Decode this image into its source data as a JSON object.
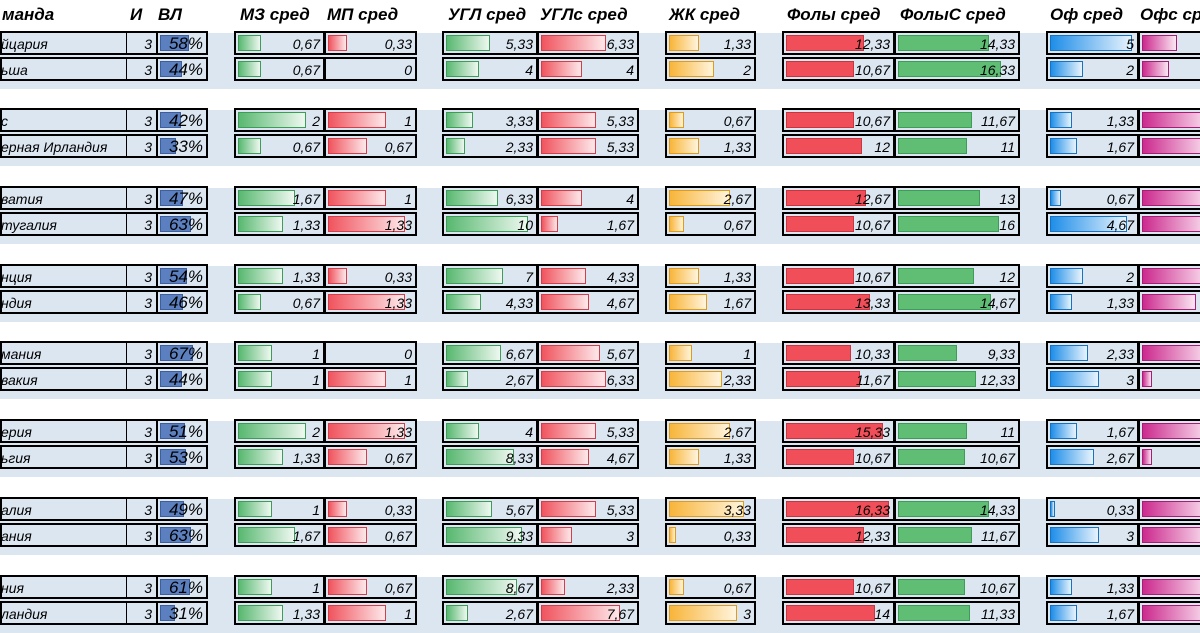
{
  "colors": {
    "row_band": "#dce6f1",
    "vl_bar": "#5b7fbf",
    "mz_bar": "#58b870",
    "mp_bar": "#f0545e",
    "ugl_bar": "#58b870",
    "ugls_bar": "#f0545e",
    "zhk_bar": "#f8b53a",
    "foly_bar": "#f04f5a",
    "folys_bar": "#5fbe74",
    "of_bar": "#1f8ee8",
    "ofs_bar": "#cc2a8e"
  },
  "headers": {
    "team": "манда",
    "games": "И",
    "vl": "ВЛ",
    "mz": "МЗ сред",
    "mp": "МП сред",
    "ugl": "УГЛ сред",
    "ugls": "УГЛс сред",
    "zhk": "ЖК сред",
    "foly": "Фолы сред",
    "folys": "ФолыС сред",
    "of": "Оф сред",
    "ofs": "Офс сред"
  },
  "groups": [
    {
      "rows": [
        {
          "team": "йцария",
          "games": "3",
          "vl": "58%",
          "vl_frac": 0.58,
          "mz": "0,67",
          "mz_v": 0.67,
          "mp": "0,33",
          "mp_v": 0.33,
          "ugl": "5,33",
          "ugl_v": 5.33,
          "ugls": "6,33",
          "ugls_v": 6.33,
          "zhk": "1,33",
          "zhk_v": 1.33,
          "foly": "12,33",
          "foly_v": 12.33,
          "folys": "14,33",
          "folys_v": 14.33,
          "of": "5",
          "of_v": 5,
          "ofs_v": 1.4
        },
        {
          "team": "ьша",
          "games": "3",
          "vl": "44%",
          "vl_frac": 0.44,
          "mz": "0,67",
          "mz_v": 0.67,
          "mp": "0",
          "mp_v": 0,
          "ugl": "4",
          "ugl_v": 4,
          "ugls": "4",
          "ugls_v": 4,
          "zhk": "2",
          "zhk_v": 2,
          "foly": "10,67",
          "foly_v": 10.67,
          "folys": "16,33",
          "folys_v": 16.33,
          "of": "2",
          "of_v": 2,
          "ofs_v": 1.1
        }
      ]
    },
    {
      "rows": [
        {
          "team": "с",
          "games": "3",
          "vl": "42%",
          "vl_frac": 0.42,
          "mz": "2",
          "mz_v": 2,
          "mp": "1",
          "mp_v": 1,
          "ugl": "3,33",
          "ugl_v": 3.33,
          "ugls": "5,33",
          "ugls_v": 5.33,
          "zhk": "0,67",
          "zhk_v": 0.67,
          "foly": "10,67",
          "foly_v": 10.67,
          "folys": "11,67",
          "folys_v": 11.67,
          "of": "1,33",
          "of_v": 1.33,
          "ofs_v": 2.8
        },
        {
          "team": "ерная Ирландия",
          "games": "3",
          "vl": "33%",
          "vl_frac": 0.33,
          "mz": "0,67",
          "mz_v": 0.67,
          "mp": "0,67",
          "mp_v": 0.67,
          "ugl": "2,33",
          "ugl_v": 2.33,
          "ugls": "5,33",
          "ugls_v": 5.33,
          "zhk": "1,33",
          "zhk_v": 1.33,
          "foly": "12",
          "foly_v": 12,
          "folys": "11",
          "folys_v": 11,
          "of": "1,67",
          "of_v": 1.67,
          "ofs_v": 2.8
        }
      ]
    },
    {
      "rows": [
        {
          "team": "ватия",
          "games": "3",
          "vl": "47%",
          "vl_frac": 0.47,
          "mz": "1,67",
          "mz_v": 1.67,
          "mp": "1",
          "mp_v": 1,
          "ugl": "6,33",
          "ugl_v": 6.33,
          "ugls": "4",
          "ugls_v": 4,
          "zhk": "2,67",
          "zhk_v": 2.67,
          "foly": "12,67",
          "foly_v": 12.67,
          "folys": "13",
          "folys_v": 13,
          "of": "0,67",
          "of_v": 0.67,
          "ofs_v": 2.8
        },
        {
          "team": "тугалия",
          "games": "3",
          "vl": "63%",
          "vl_frac": 0.63,
          "mz": "1,33",
          "mz_v": 1.33,
          "mp": "1,33",
          "mp_v": 1.33,
          "ugl": "10",
          "ugl_v": 10,
          "ugls": "1,67",
          "ugls_v": 1.67,
          "zhk": "0,67",
          "zhk_v": 0.67,
          "foly": "10,67",
          "foly_v": 10.67,
          "folys": "16",
          "folys_v": 16,
          "of": "4,67",
          "of_v": 4.67,
          "ofs_v": 2.8
        }
      ]
    },
    {
      "rows": [
        {
          "team": "нция",
          "games": "3",
          "vl": "54%",
          "vl_frac": 0.54,
          "mz": "1,33",
          "mz_v": 1.33,
          "mp": "0,33",
          "mp_v": 0.33,
          "ugl": "7",
          "ugl_v": 7,
          "ugls": "4,33",
          "ugls_v": 4.33,
          "zhk": "1,33",
          "zhk_v": 1.33,
          "foly": "10,67",
          "foly_v": 10.67,
          "folys": "12",
          "folys_v": 12,
          "of": "2",
          "of_v": 2,
          "ofs_v": 2.8
        },
        {
          "team": "ндия",
          "games": "3",
          "vl": "46%",
          "vl_frac": 0.46,
          "mz": "0,67",
          "mz_v": 0.67,
          "mp": "1,33",
          "mp_v": 1.33,
          "ugl": "4,33",
          "ugl_v": 4.33,
          "ugls": "4,67",
          "ugls_v": 4.67,
          "zhk": "1,67",
          "zhk_v": 1.67,
          "foly": "13,33",
          "foly_v": 13.33,
          "folys": "14,67",
          "folys_v": 14.67,
          "of": "1,33",
          "of_v": 1.33,
          "ofs_v": 2.2
        }
      ]
    },
    {
      "rows": [
        {
          "team": "мания",
          "games": "3",
          "vl": "67%",
          "vl_frac": 0.67,
          "mz": "1",
          "mz_v": 1,
          "mp": "0",
          "mp_v": 0,
          "ugl": "6,67",
          "ugl_v": 6.67,
          "ugls": "5,67",
          "ugls_v": 5.67,
          "zhk": "1",
          "zhk_v": 1,
          "foly": "10,33",
          "foly_v": 10.33,
          "folys": "9,33",
          "folys_v": 9.33,
          "of": "2,33",
          "of_v": 2.33,
          "ofs_v": 2.8
        },
        {
          "team": "вакия",
          "games": "3",
          "vl": "44%",
          "vl_frac": 0.44,
          "mz": "1",
          "mz_v": 1,
          "mp": "1",
          "mp_v": 1,
          "ugl": "2,67",
          "ugl_v": 2.67,
          "ugls": "6,33",
          "ugls_v": 6.33,
          "zhk": "2,33",
          "zhk_v": 2.33,
          "foly": "11,67",
          "foly_v": 11.67,
          "folys": "12,33",
          "folys_v": 12.33,
          "of": "3",
          "of_v": 3,
          "ofs_v": 0.4
        }
      ]
    },
    {
      "rows": [
        {
          "team": "ерия",
          "games": "3",
          "vl": "51%",
          "vl_frac": 0.51,
          "mz": "2",
          "mz_v": 2,
          "mp": "1,33",
          "mp_v": 1.33,
          "ugl": "4",
          "ugl_v": 4,
          "ugls": "5,33",
          "ugls_v": 5.33,
          "zhk": "2,67",
          "zhk_v": 2.67,
          "foly": "15,33",
          "foly_v": 15.33,
          "folys": "11",
          "folys_v": 11,
          "of": "1,67",
          "of_v": 1.67,
          "ofs_v": 2.8
        },
        {
          "team": "ьгия",
          "games": "3",
          "vl": "53%",
          "vl_frac": 0.53,
          "mz": "1,33",
          "mz_v": 1.33,
          "mp": "0,67",
          "mp_v": 0.67,
          "ugl": "8,33",
          "ugl_v": 8.33,
          "ugls": "4,67",
          "ugls_v": 4.67,
          "zhk": "1,33",
          "zhk_v": 1.33,
          "foly": "10,67",
          "foly_v": 10.67,
          "folys": "10,67",
          "folys_v": 10.67,
          "of": "2,67",
          "of_v": 2.67,
          "ofs_v": 0.4
        }
      ]
    },
    {
      "rows": [
        {
          "team": "алия",
          "games": "3",
          "vl": "49%",
          "vl_frac": 0.49,
          "mz": "1",
          "mz_v": 1,
          "mp": "0,33",
          "mp_v": 0.33,
          "ugl": "5,67",
          "ugl_v": 5.67,
          "ugls": "5,33",
          "ugls_v": 5.33,
          "zhk": "3,33",
          "zhk_v": 3.33,
          "foly": "16,33",
          "foly_v": 16.33,
          "folys": "14,33",
          "folys_v": 14.33,
          "of": "0,33",
          "of_v": 0.33,
          "ofs_v": 2.8
        },
        {
          "team": "ания",
          "games": "3",
          "vl": "63%",
          "vl_frac": 0.63,
          "mz": "1,67",
          "mz_v": 1.67,
          "mp": "0,67",
          "mp_v": 0.67,
          "ugl": "9,33",
          "ugl_v": 9.33,
          "ugls": "3",
          "ugls_v": 3,
          "zhk": "0,33",
          "zhk_v": 0.33,
          "foly": "12,33",
          "foly_v": 12.33,
          "folys": "11,67",
          "folys_v": 11.67,
          "of": "3",
          "of_v": 3,
          "ofs_v": 2.8
        }
      ]
    },
    {
      "rows": [
        {
          "team": "ния",
          "games": "3",
          "vl": "61%",
          "vl_frac": 0.61,
          "mz": "1",
          "mz_v": 1,
          "mp": "0,67",
          "mp_v": 0.67,
          "ugl": "8,67",
          "ugl_v": 8.67,
          "ugls": "2,33",
          "ugls_v": 2.33,
          "zhk": "0,67",
          "zhk_v": 0.67,
          "foly": "10,67",
          "foly_v": 10.67,
          "folys": "10,67",
          "folys_v": 10.67,
          "of": "1,33",
          "of_v": 1.33,
          "ofs_v": 2.8
        },
        {
          "team": "ландия",
          "games": "3",
          "vl": "31%",
          "vl_frac": 0.31,
          "mz": "1,33",
          "mz_v": 1.33,
          "mp": "1",
          "mp_v": 1,
          "ugl": "2,67",
          "ugl_v": 2.67,
          "ugls": "7,67",
          "ugls_v": 7.67,
          "zhk": "3",
          "zhk_v": 3,
          "foly": "14",
          "foly_v": 14,
          "folys": "11,33",
          "folys_v": 11.33,
          "of": "1,67",
          "of_v": 1.67,
          "ofs_v": 2.8
        }
      ]
    }
  ]
}
